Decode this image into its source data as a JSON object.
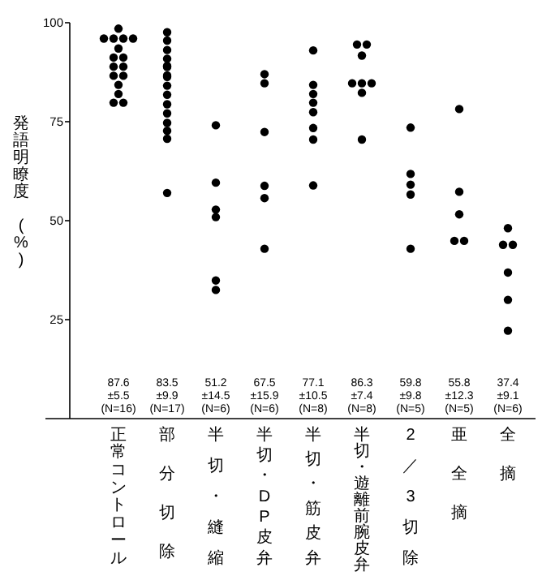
{
  "chart_data": {
    "type": "scatter",
    "ylabel": "発語明瞭度 (%)",
    "categories": [
      "正常コントロール",
      "部分切除",
      "半切・縫縮",
      "半切・DP皮弁",
      "半切・筋皮弁",
      "半切・遊離前腕皮弁",
      "2／3切除",
      "亜全摘",
      "全摘"
    ],
    "series": [
      {
        "color": "#000000",
        "marker": "circle",
        "x": [
          "正常コントロール",
          "正常コントロール",
          "正常コントロール",
          "正常コントロール",
          "正常コントロール",
          "正常コントロール",
          "正常コントロール",
          "正常コントロール",
          "正常コントロール",
          "正常コントロール",
          "正常コントロール",
          "正常コントロール",
          "正常コントロール",
          "正常コントロール",
          "正常コントロール",
          "正常コントロール",
          "部分切除",
          "部分切除",
          "部分切除",
          "部分切除",
          "部分切除",
          "部分切除",
          "部分切除",
          "部分切除",
          "部分切除",
          "部分切除",
          "部分切除",
          "部分切除",
          "部分切除",
          "部分切除",
          "部分切除",
          "部分切除",
          "半切・縫縮",
          "半切・縫縮",
          "半切・縫縮",
          "半切・縫縮",
          "半切・縫縮",
          "半切・縫縮",
          "半切・DP皮弁",
          "半切・DP皮弁",
          "半切・DP皮弁",
          "半切・DP皮弁",
          "半切・DP皮弁",
          "半切・DP皮弁",
          "半切・筋皮弁",
          "半切・筋皮弁",
          "半切・筋皮弁",
          "半切・筋皮弁",
          "半切・筋皮弁",
          "半切・筋皮弁",
          "半切・筋皮弁",
          "半切・筋皮弁",
          "半切・遊離前腕皮弁",
          "半切・遊離前腕皮弁",
          "半切・遊離前腕皮弁",
          "半切・遊離前腕皮弁",
          "半切・遊離前腕皮弁",
          "半切・遊離前腕皮弁",
          "半切・遊離前腕皮弁",
          "半切・遊離前腕皮弁",
          "2／3切除",
          "2／3切除",
          "2／3切除",
          "2／3切除",
          "2／3切除",
          "亜全摘",
          "亜全摘",
          "亜全摘",
          "亜全摘",
          "亜全摘",
          "全摘",
          "全摘",
          "全摘",
          "全摘",
          "全摘",
          "全摘"
        ],
        "values": [
          98.5,
          96,
          96,
          96,
          96,
          93.5,
          91.2,
          91.2,
          88.9,
          88.9,
          86.6,
          86.6,
          84.3,
          82,
          79.8,
          79.8,
          97.6,
          95.5,
          93.1,
          90.9,
          88.8,
          86.3,
          84.1,
          81.8,
          79.4,
          77.1,
          74.7,
          72.7,
          70.7,
          89.1,
          86.7,
          57,
          74.1,
          59.6,
          52.8,
          50.9,
          34.9,
          32.5,
          87,
          84.7,
          72.4,
          58.8,
          55.7,
          42.9,
          93,
          84.3,
          82,
          79.8,
          77.4,
          73.4,
          70.5,
          58.9,
          94.5,
          94.5,
          91.7,
          84.7,
          84.7,
          84.7,
          82.3,
          70.5,
          73.5,
          61.8,
          59.1,
          56.6,
          42.9,
          78.2,
          57.3,
          51.6,
          44.9,
          44.9,
          48.1,
          43.9,
          43.9,
          36.9,
          30,
          22.2
        ]
      }
    ],
    "ylim": [
      0,
      100
    ],
    "yticks": [
      25,
      50,
      75,
      100
    ],
    "grid": false,
    "annotations": [
      "87.6\n±5.5\n(N=16)",
      "83.5\n±9.9\n(N=17)",
      "51.2\n±14.5\n(N=6)",
      "67.5\n±15.9\n(N=6)",
      "77.1\n±10.5\n(N=8)",
      "86.3\n±7.4\n(N=8)",
      "59.8\n±9.8\n(N=5)",
      "55.8\n±12.3\n(N=5)",
      "37.4\n±9.1\n(N=6)"
    ]
  }
}
